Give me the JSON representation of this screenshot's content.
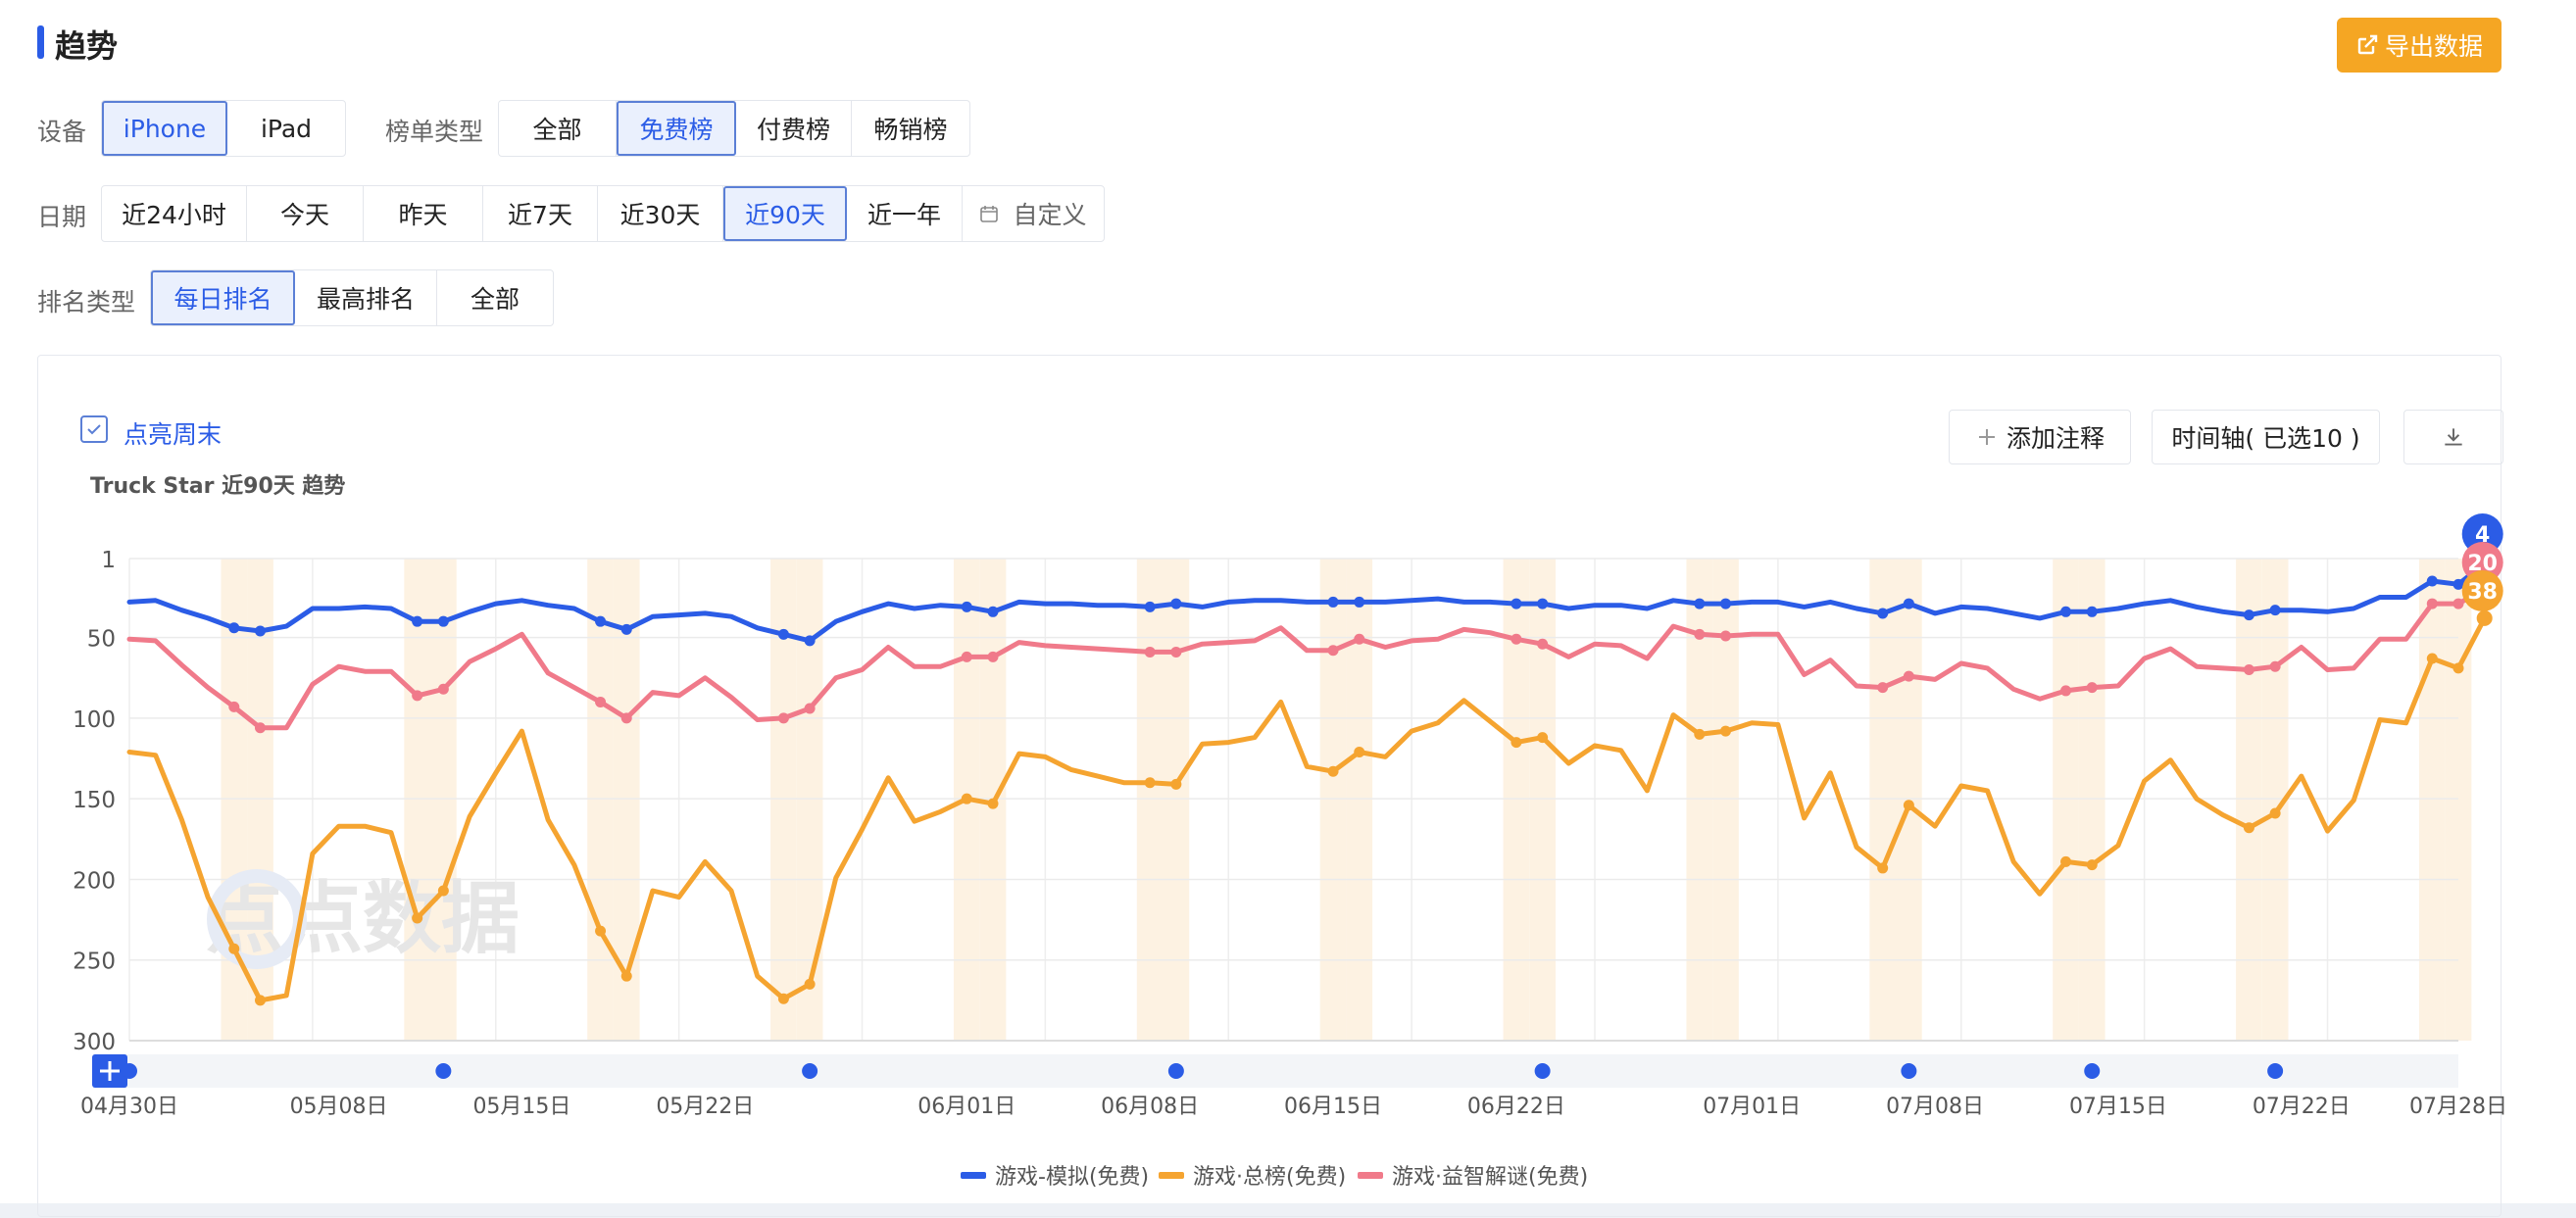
{
  "header": {
    "title": "趋势",
    "export_label": "导出数据"
  },
  "filters": {
    "device": {
      "label": "设备",
      "options": [
        "iPhone",
        "iPad"
      ],
      "selected": "iPhone"
    },
    "chart_type": {
      "label": "榜单类型",
      "options": [
        "全部",
        "免费榜",
        "付费榜",
        "畅销榜"
      ],
      "selected": "免费榜"
    },
    "date": {
      "label": "日期",
      "options": [
        "近24小时",
        "今天",
        "昨天",
        "近7天",
        "近30天",
        "近90天",
        "近一年",
        "自定义"
      ],
      "selected": "近90天"
    },
    "rank_type": {
      "label": "排名类型",
      "options": [
        "每日排名",
        "最高排名",
        "全部"
      ],
      "selected": "每日排名"
    }
  },
  "chart_panel": {
    "highlight_weekend_label": "点亮周末",
    "highlight_weekend_checked": true,
    "add_note_label": "添加注释",
    "timeline_label": "时间轴( 已选10 )",
    "download_icon": "download-icon"
  },
  "colors": {
    "accent": "#2b5ce6",
    "export": "#f5a623",
    "sim": "#2b5ce6",
    "overall": "#f5a430",
    "puzzle": "#f07a8a",
    "weekend": "#fdf2e2"
  },
  "chart_data": {
    "type": "line",
    "title": "Truck Star 近90天 趋势",
    "y_inverted": true,
    "ylim": [
      1,
      300
    ],
    "y_ticks": [
      "1",
      "50",
      "100",
      "150",
      "200",
      "250",
      "300"
    ],
    "x_tick_labels": [
      "04月30日",
      "05月08日",
      "05月15日",
      "05月22日",
      "06月01日",
      "06月08日",
      "06月15日",
      "06月22日",
      "07月01日",
      "07月08日",
      "07月15日",
      "07月22日",
      "07月28日"
    ],
    "x_range": [
      "2024-04-30",
      "2024-07-28"
    ],
    "weekends": [
      "2024-05-04",
      "2024-05-05",
      "2024-05-11",
      "2024-05-12",
      "2024-05-18",
      "2024-05-19",
      "2024-05-25",
      "2024-05-26",
      "2024-06-01",
      "2024-06-02",
      "2024-06-08",
      "2024-06-09",
      "2024-06-15",
      "2024-06-16",
      "2024-06-22",
      "2024-06-23",
      "2024-06-29",
      "2024-06-30",
      "2024-07-06",
      "2024-07-07",
      "2024-07-13",
      "2024-07-14",
      "2024-07-20",
      "2024-07-21",
      "2024-07-27",
      "2024-07-28"
    ],
    "legend_position": "bottom",
    "series": [
      {
        "name": "游戏-模拟(免费)",
        "color": "#2b5ce6",
        "end_label": "4",
        "values": [
          28,
          27,
          33,
          38,
          44,
          46,
          43,
          32,
          32,
          31,
          32,
          40,
          40,
          34,
          29,
          27,
          30,
          32,
          40,
          45,
          37,
          36,
          35,
          37,
          44,
          48,
          52,
          40,
          34,
          29,
          32,
          30,
          31,
          34,
          28,
          29,
          29,
          30,
          30,
          31,
          29,
          31,
          28,
          27,
          27,
          28,
          28,
          28,
          28,
          27,
          26,
          28,
          28,
          29,
          29,
          32,
          30,
          30,
          32,
          27,
          29,
          29,
          28,
          28,
          31,
          28,
          32,
          35,
          29,
          35,
          31,
          32,
          35,
          38,
          34,
          34,
          32,
          29,
          27,
          31,
          34,
          36,
          33,
          33,
          34,
          32,
          25,
          25,
          15,
          17,
          4
        ]
      },
      {
        "name": "游戏·总榜(免费)",
        "color": "#f5a430",
        "end_label": "38",
        "values": [
          121,
          123,
          163,
          211,
          243,
          275,
          272,
          184,
          167,
          167,
          171,
          224,
          207,
          161,
          134,
          108,
          163,
          191,
          232,
          260,
          207,
          211,
          189,
          207,
          260,
          274,
          265,
          199,
          169,
          137,
          164,
          158,
          150,
          153,
          122,
          124,
          132,
          136,
          140,
          140,
          141,
          116,
          115,
          112,
          90,
          130,
          133,
          121,
          124,
          108,
          103,
          89,
          102,
          115,
          112,
          128,
          117,
          120,
          145,
          98,
          110,
          108,
          103,
          104,
          162,
          134,
          180,
          193,
          154,
          167,
          142,
          145,
          189,
          209,
          189,
          191,
          179,
          139,
          126,
          150,
          160,
          168,
          159,
          136,
          170,
          151,
          101,
          103,
          63,
          69,
          38
        ]
      },
      {
        "name": "游戏·益智解谜(免费)",
        "color": "#f07a8a",
        "end_label": "20",
        "values": [
          51,
          52,
          67,
          81,
          93,
          106,
          106,
          79,
          68,
          71,
          71,
          86,
          82,
          65,
          57,
          48,
          72,
          81,
          90,
          100,
          84,
          86,
          75,
          87,
          101,
          100,
          94,
          75,
          70,
          56,
          68,
          68,
          62,
          62,
          53,
          55,
          56,
          57,
          58,
          59,
          59,
          54,
          53,
          52,
          44,
          58,
          58,
          51,
          56,
          52,
          51,
          45,
          47,
          51,
          54,
          62,
          54,
          55,
          63,
          43,
          48,
          49,
          48,
          48,
          73,
          64,
          80,
          81,
          74,
          76,
          66,
          69,
          82,
          88,
          83,
          81,
          80,
          63,
          57,
          68,
          69,
          70,
          68,
          56,
          70,
          69,
          51,
          51,
          29,
          29,
          20
        ]
      }
    ]
  }
}
